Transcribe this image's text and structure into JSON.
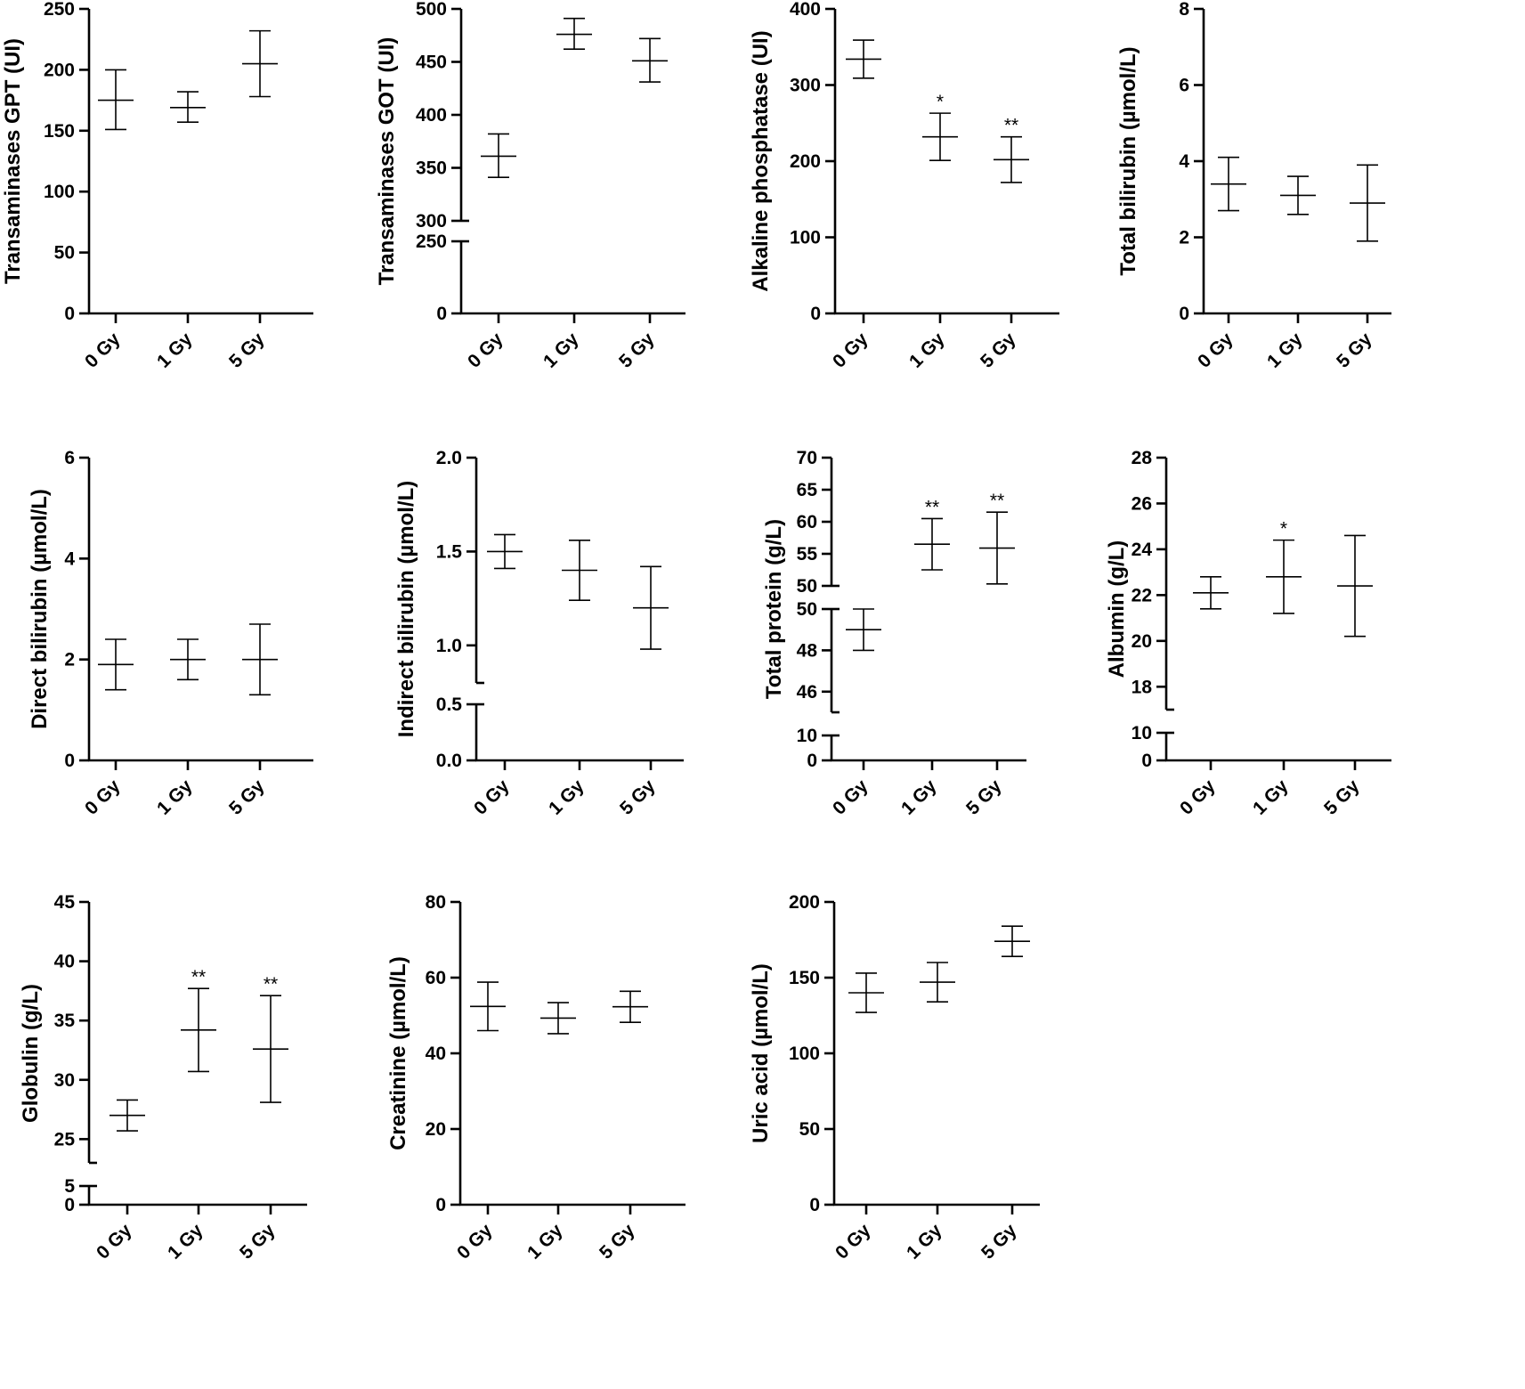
{
  "chart_data": [
    {
      "type": "scatter",
      "ylabel": "Transaminases GPT (UI)",
      "categories": [
        "0 Gy",
        "1 Gy",
        "5 Gy"
      ],
      "ticks": [
        0,
        50,
        100,
        150,
        200,
        250
      ],
      "ylim": [
        0,
        250
      ],
      "points": [
        {
          "mean": 175,
          "low": 151,
          "high": 200,
          "sig": ""
        },
        {
          "mean": 169,
          "low": 157,
          "high": 182,
          "sig": ""
        },
        {
          "mean": 205,
          "low": 178,
          "high": 232,
          "sig": ""
        }
      ]
    },
    {
      "type": "scatter",
      "ylabel": "Transaminases GOT (UI)",
      "categories": [
        "0 Gy",
        "1 Gy",
        "5 Gy"
      ],
      "ticks": [
        0,
        250,
        300,
        350,
        400,
        450,
        500
      ],
      "axis_break": {
        "lower": [
          0,
          250
        ],
        "upper": [
          300,
          500
        ]
      },
      "points": [
        {
          "mean": 361,
          "low": 341,
          "high": 382,
          "sig": ""
        },
        {
          "mean": 476,
          "low": 462,
          "high": 491,
          "sig": ""
        },
        {
          "mean": 451,
          "low": 431,
          "high": 472,
          "sig": ""
        }
      ]
    },
    {
      "type": "scatter",
      "ylabel": "Alkaline phosphatase (UI)",
      "categories": [
        "0 Gy",
        "1 Gy",
        "5 Gy"
      ],
      "ticks": [
        0,
        100,
        200,
        300,
        400
      ],
      "ylim": [
        0,
        400
      ],
      "points": [
        {
          "mean": 334,
          "low": 309,
          "high": 359,
          "sig": ""
        },
        {
          "mean": 232,
          "low": 201,
          "high": 263,
          "sig": "*"
        },
        {
          "mean": 202,
          "low": 172,
          "high": 232,
          "sig": "**"
        }
      ]
    },
    {
      "type": "scatter",
      "ylabel": "Total bilirubin (µmol/L)",
      "categories": [
        "0 Gy",
        "1 Gy",
        "5 Gy"
      ],
      "ticks": [
        0,
        2,
        4,
        6,
        8
      ],
      "ylim": [
        0,
        8
      ],
      "points": [
        {
          "mean": 3.4,
          "low": 2.7,
          "high": 4.1,
          "sig": ""
        },
        {
          "mean": 3.1,
          "low": 2.6,
          "high": 3.6,
          "sig": ""
        },
        {
          "mean": 2.9,
          "low": 1.9,
          "high": 3.9,
          "sig": ""
        }
      ]
    },
    {
      "type": "scatter",
      "ylabel": "Direct bilirubin (µmol/L)",
      "categories": [
        "0 Gy",
        "1 Gy",
        "5 Gy"
      ],
      "ticks": [
        0,
        2,
        4,
        6
      ],
      "ylim": [
        0,
        6
      ],
      "points": [
        {
          "mean": 1.9,
          "low": 1.4,
          "high": 2.4,
          "sig": ""
        },
        {
          "mean": 2.0,
          "low": 1.6,
          "high": 2.4,
          "sig": ""
        },
        {
          "mean": 2.0,
          "low": 1.3,
          "high": 2.7,
          "sig": ""
        }
      ]
    },
    {
      "type": "scatter",
      "ylabel": "Indirect bilirubin (µmol/L)",
      "categories": [
        "0 Gy",
        "1 Gy",
        "5 Gy"
      ],
      "ticks": [
        "0.0",
        "0.5",
        "1.0",
        "1.5",
        "2.0"
      ],
      "axis_break": {
        "lower": [
          0,
          0.5
        ],
        "upper": [
          0.8,
          2.0
        ]
      },
      "points": [
        {
          "mean": 1.5,
          "low": 1.41,
          "high": 1.59,
          "sig": ""
        },
        {
          "mean": 1.4,
          "low": 1.24,
          "high": 1.56,
          "sig": ""
        },
        {
          "mean": 1.2,
          "low": 0.98,
          "high": 1.42,
          "sig": ""
        }
      ]
    },
    {
      "type": "scatter",
      "ylabel": "Total protein (g/L)",
      "categories": [
        "0 Gy",
        "1 Gy",
        "5 Gy"
      ],
      "ticks_lower": [
        0,
        10
      ],
      "ticks_mid": [
        46,
        48,
        50
      ],
      "ticks_upper": [
        50,
        55,
        60,
        65,
        70
      ],
      "axis_break": {
        "lower": [
          0,
          10
        ],
        "mid": [
          45,
          50
        ],
        "upper": [
          50,
          70
        ]
      },
      "points": [
        {
          "mean": 49,
          "low": 48,
          "high": 50,
          "sig": ""
        },
        {
          "mean": 56.5,
          "low": 52.5,
          "high": 60.5,
          "sig": "**"
        },
        {
          "mean": 55.9,
          "low": 50.3,
          "high": 61.5,
          "sig": "**"
        }
      ]
    },
    {
      "type": "scatter",
      "ylabel": "Albumin (g/L)",
      "categories": [
        "0 Gy",
        "1 Gy",
        "5 Gy"
      ],
      "ticks": [
        0,
        10,
        18,
        20,
        22,
        24,
        26,
        28
      ],
      "axis_break": {
        "lower": [
          0,
          10
        ],
        "upper": [
          17,
          28
        ]
      },
      "points": [
        {
          "mean": 22.1,
          "low": 21.4,
          "high": 22.8,
          "sig": ""
        },
        {
          "mean": 22.8,
          "low": 21.2,
          "high": 24.4,
          "sig": "*"
        },
        {
          "mean": 22.4,
          "low": 20.2,
          "high": 24.6,
          "sig": ""
        }
      ]
    },
    {
      "type": "scatter",
      "ylabel": "Globulin (g/L)",
      "categories": [
        "0 Gy",
        "1 Gy",
        "5 Gy"
      ],
      "ticks": [
        0,
        5,
        25,
        30,
        35,
        40,
        45
      ],
      "axis_break": {
        "lower": [
          0,
          5
        ],
        "upper": [
          23,
          45
        ]
      },
      "points": [
        {
          "mean": 27.0,
          "low": 25.7,
          "high": 28.3,
          "sig": ""
        },
        {
          "mean": 34.2,
          "low": 30.7,
          "high": 37.7,
          "sig": "**"
        },
        {
          "mean": 32.6,
          "low": 28.1,
          "high": 37.1,
          "sig": "**"
        }
      ]
    },
    {
      "type": "scatter",
      "ylabel": "Creatinine (µmol/L)",
      "categories": [
        "0 Gy",
        "1 Gy",
        "5 Gy"
      ],
      "ticks": [
        0,
        20,
        40,
        60,
        80
      ],
      "ylim": [
        0,
        80
      ],
      "points": [
        {
          "mean": 52.4,
          "low": 46,
          "high": 58.8,
          "sig": ""
        },
        {
          "mean": 49.3,
          "low": 45.2,
          "high": 53.4,
          "sig": ""
        },
        {
          "mean": 52.3,
          "low": 48.2,
          "high": 56.4,
          "sig": ""
        }
      ]
    },
    {
      "type": "scatter",
      "ylabel": "Uric acid (µmol/L)",
      "categories": [
        "0 Gy",
        "1 Gy",
        "5 Gy"
      ],
      "ticks": [
        0,
        50,
        100,
        150,
        200
      ],
      "ylim": [
        0,
        200
      ],
      "points": [
        {
          "mean": 140,
          "low": 127,
          "high": 153,
          "sig": ""
        },
        {
          "mean": 147,
          "low": 134,
          "high": 160,
          "sig": ""
        },
        {
          "mean": 174,
          "low": 164,
          "high": 184,
          "sig": ""
        }
      ]
    }
  ]
}
